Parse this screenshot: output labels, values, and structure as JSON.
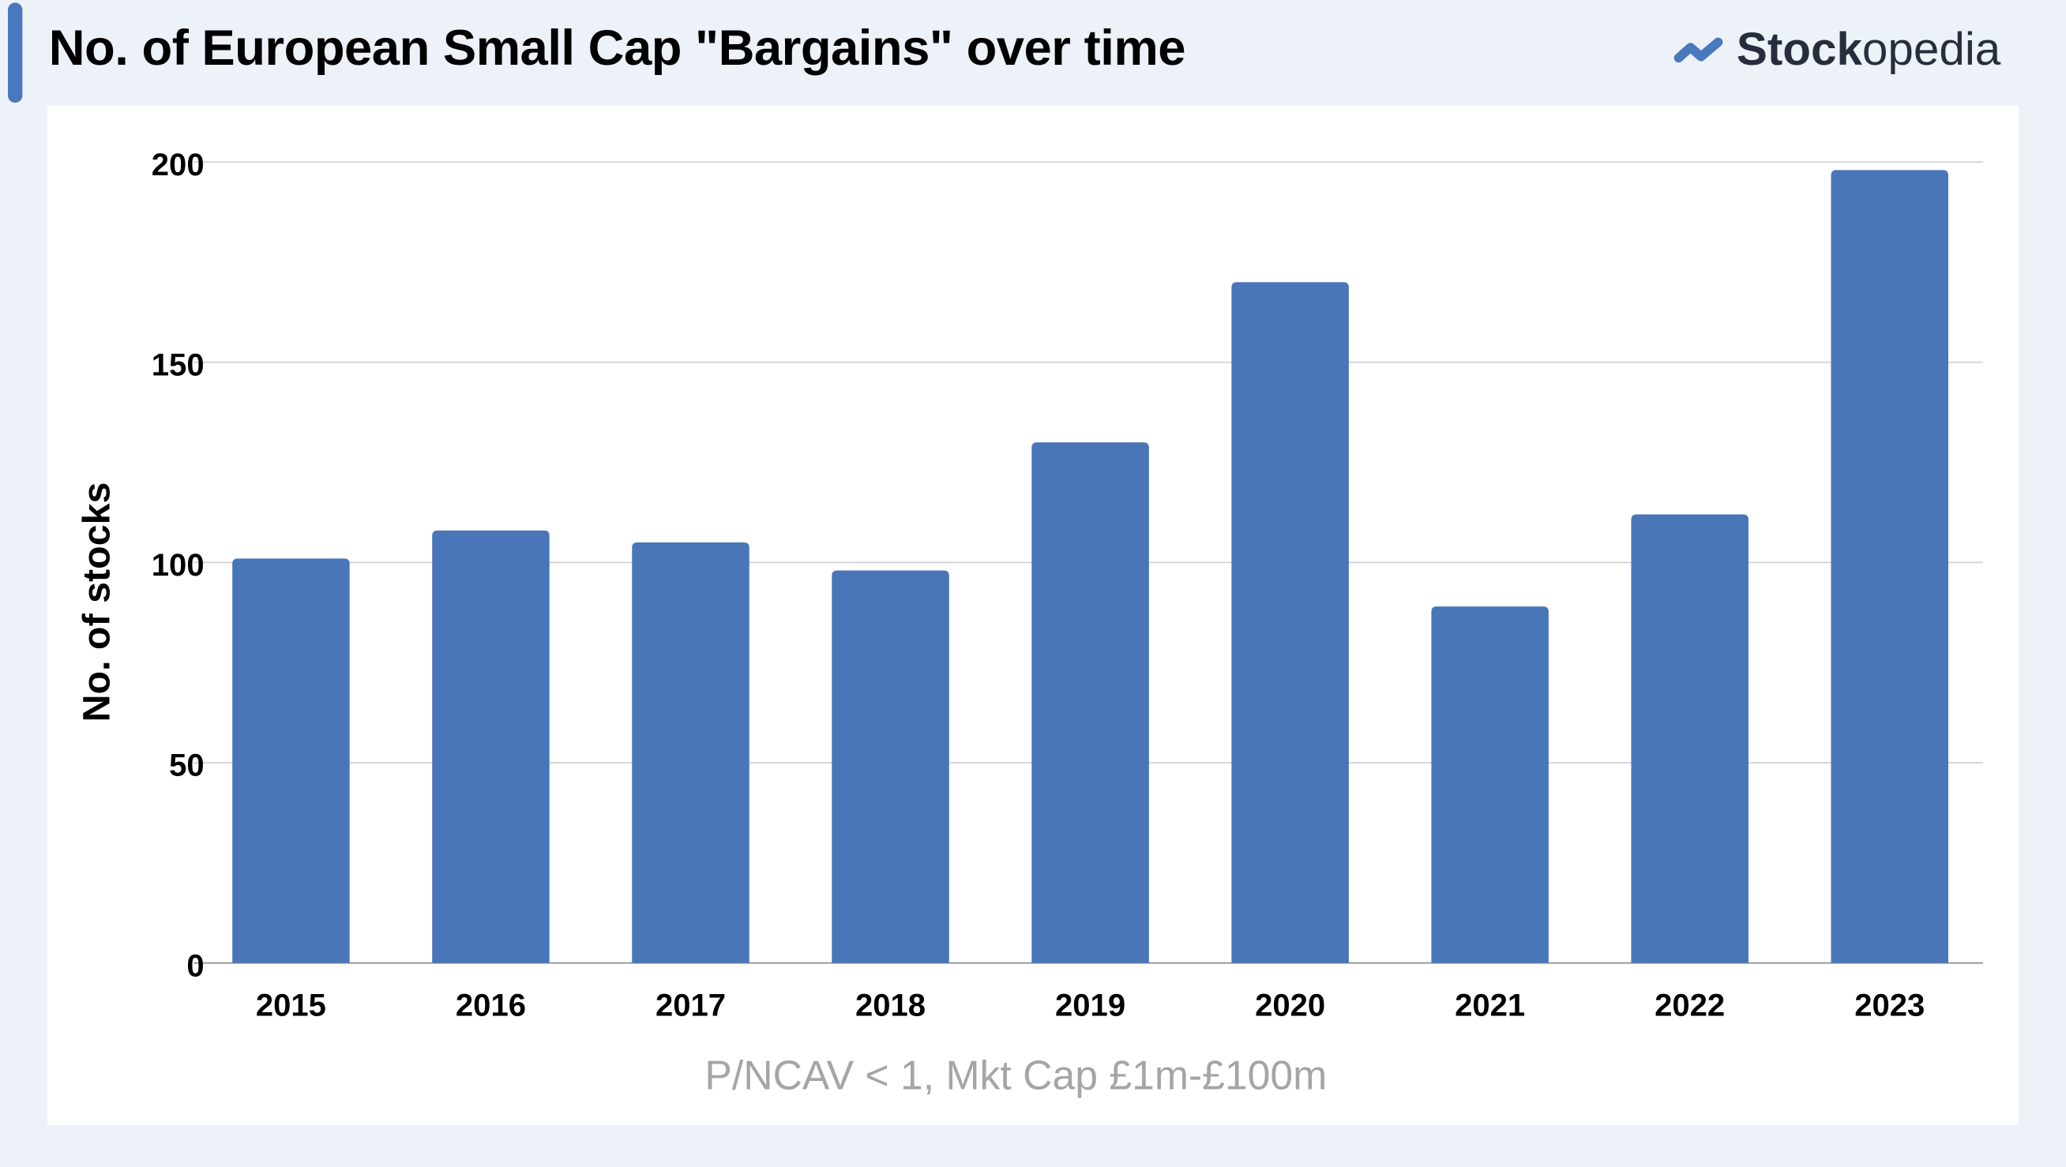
{
  "header": {
    "title": "No. of European Small Cap \"Bargains\" over time",
    "logo_bold": "Stock",
    "logo_light": "opedia"
  },
  "colors": {
    "bar": "#4876b8",
    "accent": "#4a78bd",
    "background": "#edf1f8"
  },
  "chart_data": {
    "type": "bar",
    "title": "No. of European Small Cap \"Bargains\" over time",
    "xlabel": "P/NCAV < 1, Mkt Cap £1m-£100m",
    "ylabel": "No. of stocks",
    "categories": [
      "2015",
      "2016",
      "2017",
      "2018",
      "2019",
      "2020",
      "2021",
      "2022",
      "2023"
    ],
    "values": [
      101,
      108,
      105,
      98,
      130,
      170,
      89,
      112,
      198
    ],
    "ylim": [
      0,
      200
    ],
    "yticks": [
      0,
      50,
      100,
      150,
      200
    ],
    "grid": true,
    "legend": "none"
  }
}
